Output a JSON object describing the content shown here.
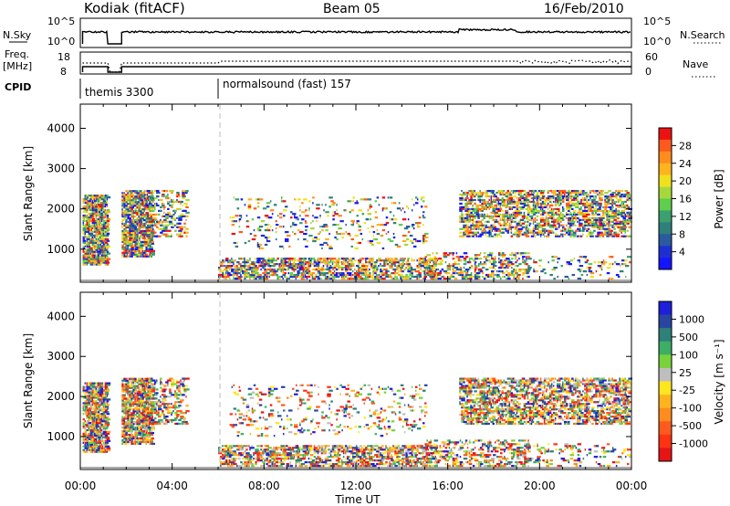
{
  "header": {
    "station": "Kodiak (fitACF)",
    "beam": "Beam 05",
    "date": "16/Feb/2010"
  },
  "top_panels": {
    "nsky_label": "N.Sky",
    "nsky_ticks": [
      "10^5",
      "10^0"
    ],
    "nsearch_label": "N.Search",
    "nsearch_ticks": [
      "10^5",
      "10^0"
    ],
    "freq_label": [
      "Freq.",
      "[MHz]"
    ],
    "freq_ticks": [
      "18",
      "8"
    ],
    "nave_label": "Nave",
    "nave_ticks": [
      "60",
      "0"
    ],
    "cpid_label": "CPID",
    "modes": [
      {
        "name": "themis 3300",
        "start_hour": 0
      },
      {
        "name": "normalsound (fast) 157",
        "start_hour": 6
      }
    ]
  },
  "colorbars": {
    "power": {
      "label": "Power [dB]",
      "ticks": [
        "28",
        "24",
        "20",
        "16",
        "12",
        "8",
        "4"
      ],
      "colors": [
        "#ee1111",
        "#ff5a1e",
        "#ff8c1e",
        "#ffb41e",
        "#f0e11e",
        "#a6d83c",
        "#5fcd4e",
        "#3c9f6e",
        "#2f7f7a",
        "#2a5aa0",
        "#1e2fd2",
        "#1414ff"
      ]
    },
    "velocity": {
      "label": "Velocity [m s⁻¹]",
      "ticks": [
        "1000",
        "500",
        "100",
        "25",
        "-25",
        "-100",
        "-500",
        "-1000"
      ],
      "colors": [
        "#1e1edc",
        "#2846a0",
        "#2f7f7a",
        "#3caf64",
        "#78d23c",
        "#bebebe",
        "#ffe61e",
        "#ffb41e",
        "#ff8c1e",
        "#ff5a1e",
        "#ff3214",
        "#e61414"
      ]
    }
  },
  "axes": {
    "ylabel": "Slant Range [km]",
    "yticks": [
      "4000",
      "3000",
      "2000",
      "1000"
    ],
    "xlabel": "Time UT",
    "xticks": [
      "00:00",
      "04:00",
      "08:00",
      "12:00",
      "16:00",
      "20:00",
      "00:00"
    ]
  },
  "chart_data": {
    "type": "heatmap",
    "x_range_hours": [
      0,
      24
    ],
    "y_range_km": [
      180,
      4600
    ],
    "mode_change_hour": 6.0,
    "scatter_clusters": [
      {
        "t0": 0.1,
        "t1": 1.2,
        "r0": 600,
        "r1": 2350,
        "density": 0.85
      },
      {
        "t0": 1.8,
        "t1": 3.1,
        "r0": 800,
        "r1": 2450,
        "density": 0.8
      },
      {
        "t0": 2.9,
        "t1": 4.6,
        "r0": 1300,
        "r1": 2450,
        "density": 0.35
      },
      {
        "t0": 6.0,
        "t1": 15.5,
        "r0": 250,
        "r1": 750,
        "density": 0.55
      },
      {
        "t0": 6.5,
        "t1": 15.0,
        "r0": 1000,
        "r1": 2300,
        "density": 0.12
      },
      {
        "t0": 15.0,
        "t1": 19.5,
        "r0": 250,
        "r1": 900,
        "density": 0.35
      },
      {
        "t0": 16.5,
        "t1": 23.9,
        "r0": 1300,
        "r1": 2450,
        "density": 0.55
      },
      {
        "t0": 19.0,
        "t1": 23.9,
        "r0": 250,
        "r1": 800,
        "density": 0.15
      }
    ]
  }
}
